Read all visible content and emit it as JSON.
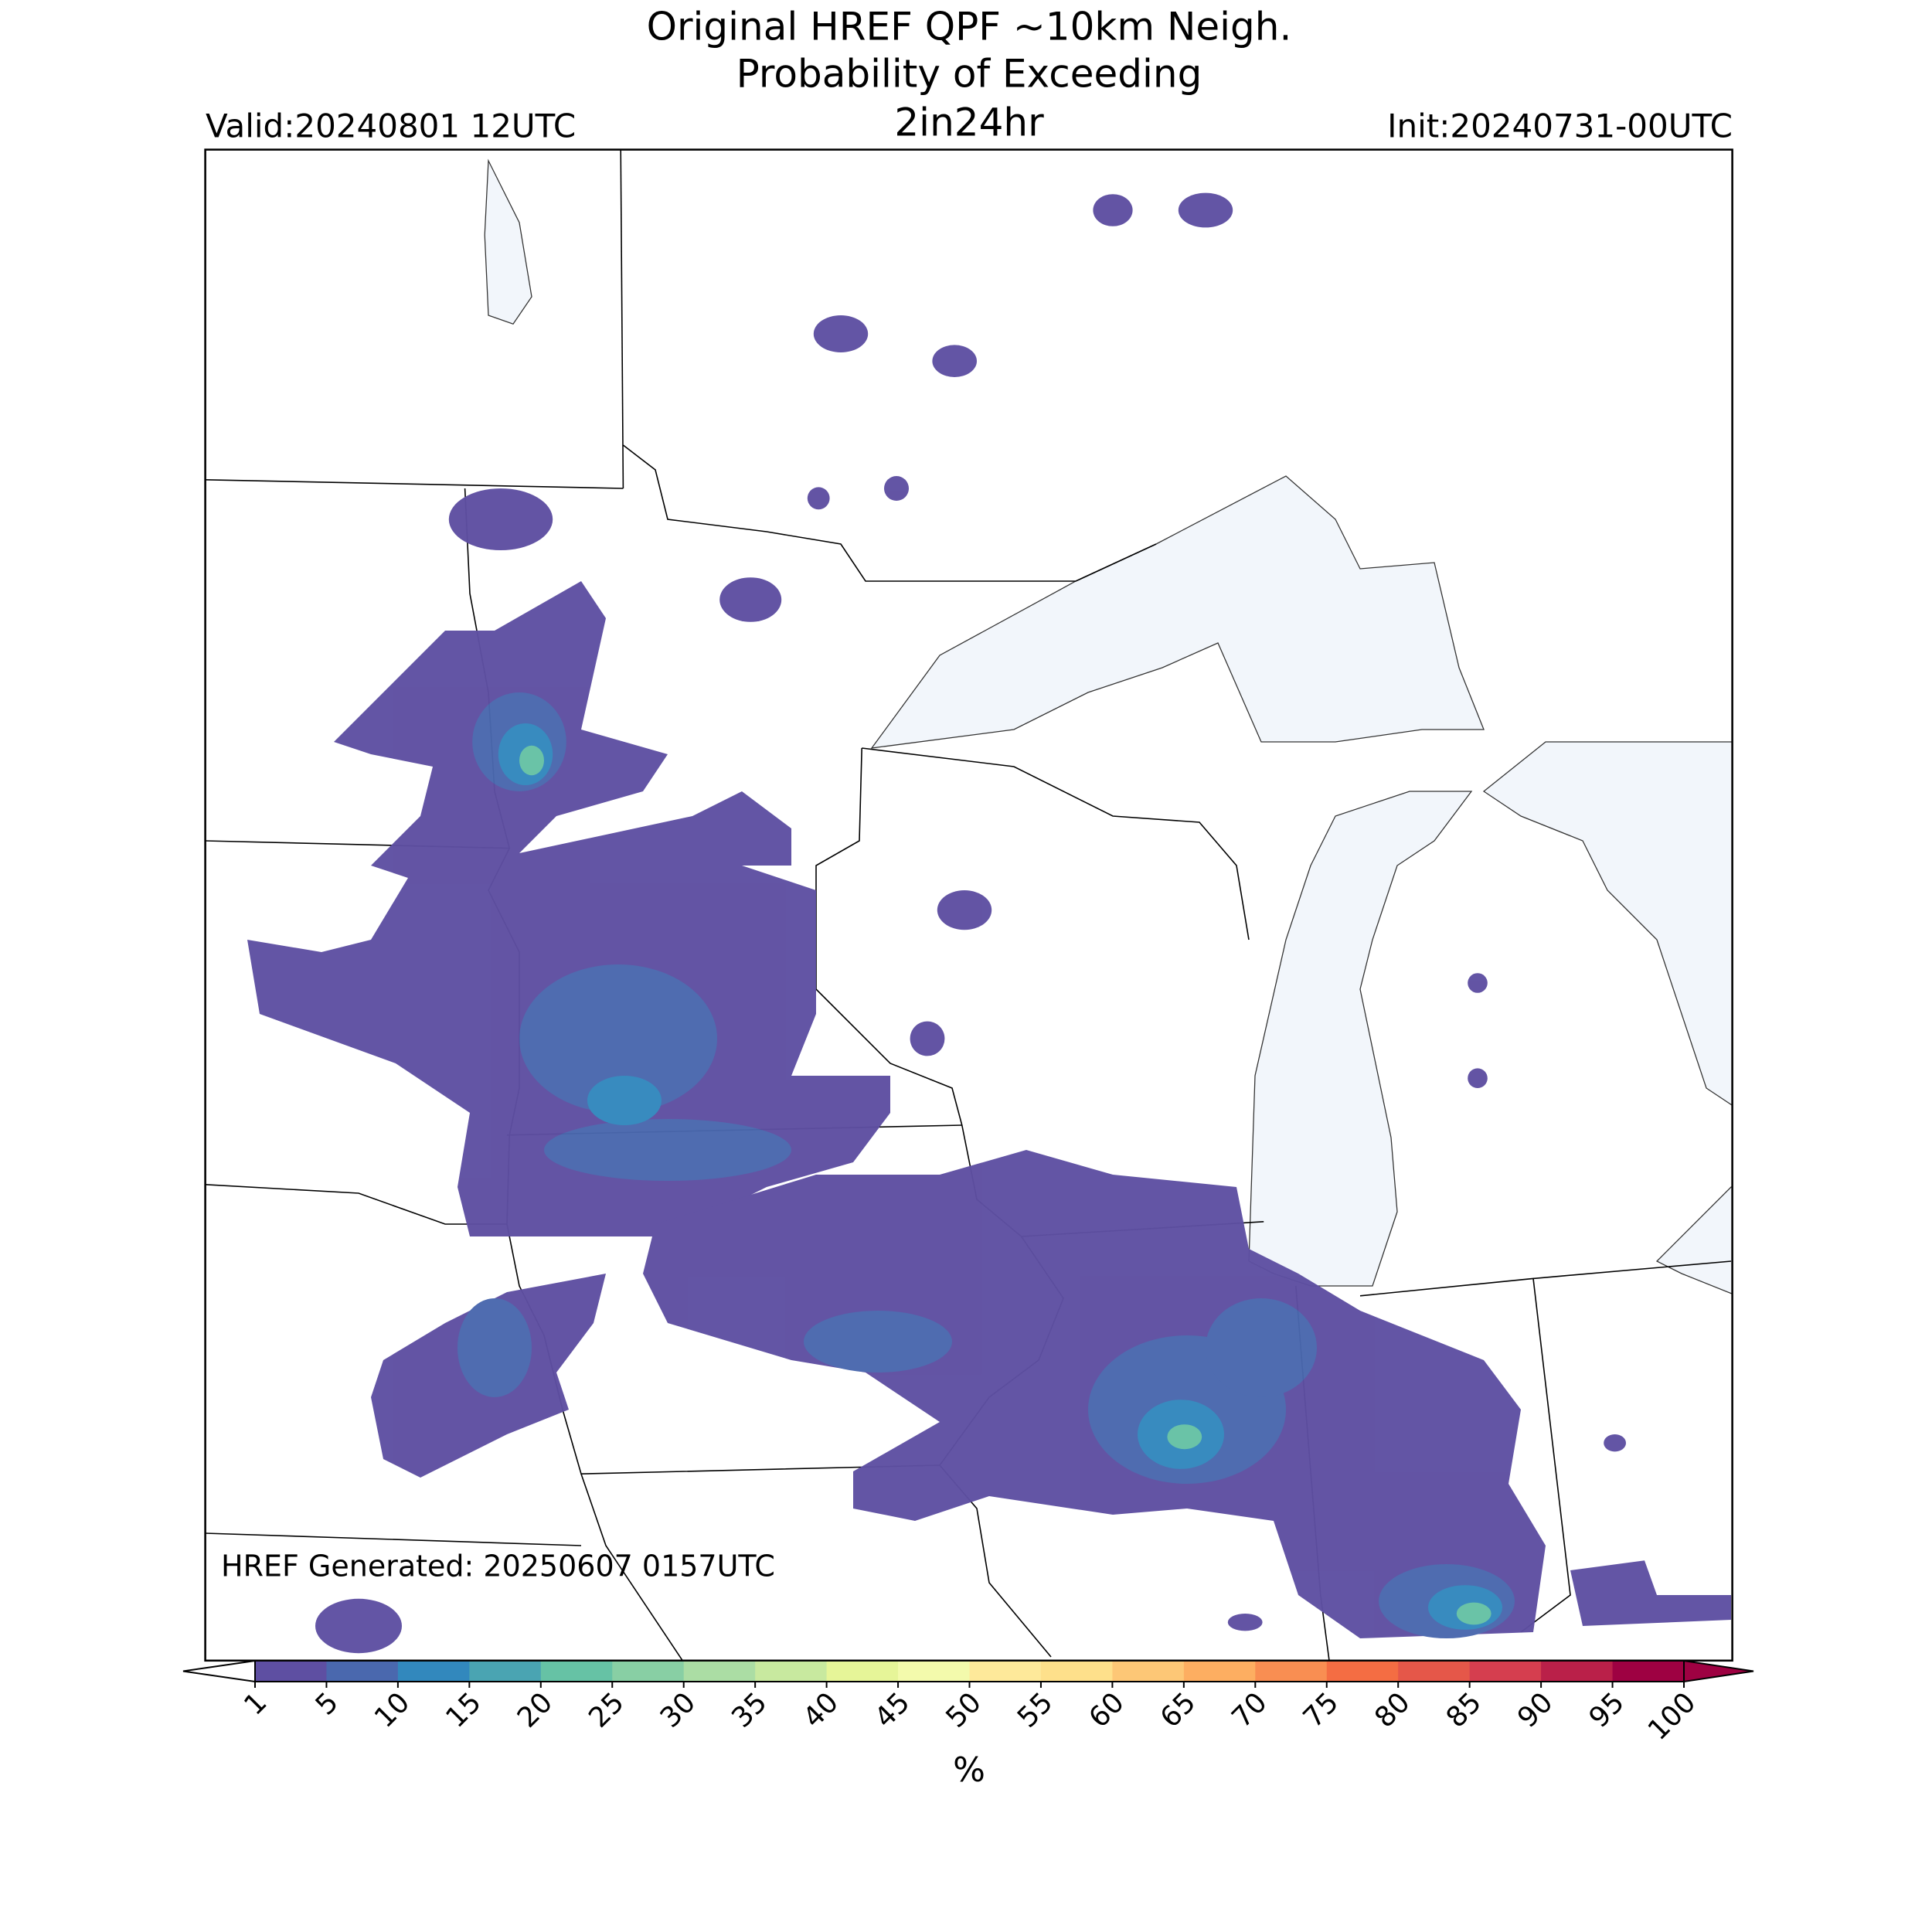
{
  "title_lines": [
    "Original HREF QPF ~10km Neigh.",
    "Probability of Exceeding",
    "2in24hr"
  ],
  "valid": "Valid:20240801 12UTC",
  "init": "Init:20240731-00UTC",
  "generated": "HREF Generated: 20250607 0157UTC",
  "colorbar": {
    "label": "%",
    "ticks": [
      1,
      5,
      10,
      15,
      20,
      25,
      30,
      35,
      40,
      45,
      50,
      55,
      60,
      65,
      70,
      75,
      80,
      85,
      90,
      95,
      100
    ],
    "colors": [
      "#5e4fa2",
      "#4a68ae",
      "#3288bd",
      "#4aa4b2",
      "#66c2a5",
      "#88cfa4",
      "#abdda4",
      "#c8e99f",
      "#e6f598",
      "#f3faac",
      "#fee99a",
      "#fee08b",
      "#fdc776",
      "#fdae61",
      "#f98e52",
      "#f46d43",
      "#e55749",
      "#d53e4f",
      "#ba2049",
      "#9e0142"
    ],
    "under_color": "#ffffff",
    "over_color": "#9e0142"
  }
}
